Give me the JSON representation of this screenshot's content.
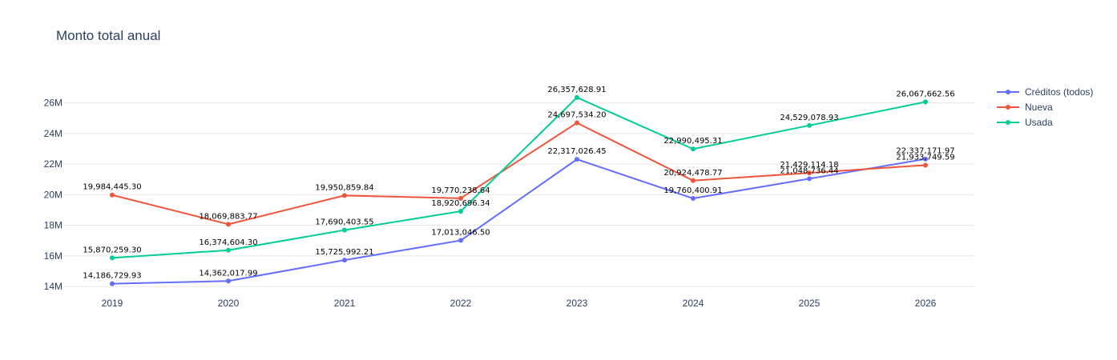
{
  "chart_data": {
    "type": "line",
    "title": "Monto total anual",
    "xlabel": "",
    "ylabel": "",
    "categories": [
      "2019",
      "2020",
      "2021",
      "2022",
      "2023",
      "2024",
      "2025",
      "2026"
    ],
    "y_ticks": [
      {
        "value": 14000000,
        "label": "14M"
      },
      {
        "value": 16000000,
        "label": "16M"
      },
      {
        "value": 18000000,
        "label": "18M"
      },
      {
        "value": 20000000,
        "label": "20M"
      },
      {
        "value": 22000000,
        "label": "22M"
      },
      {
        "value": 24000000,
        "label": "24M"
      },
      {
        "value": 26000000,
        "label": "26M"
      }
    ],
    "ylim": [
      13800000,
      27500000
    ],
    "grid": true,
    "legend_position": "top-right",
    "series": [
      {
        "name": "Créditos (todos)",
        "color": "#636efa",
        "values": [
          14186729.93,
          14362017.99,
          15725992.21,
          17013046.5,
          22317026.45,
          19760400.91,
          21048736.44,
          22337171.97
        ],
        "labels": [
          "14,186,729.93",
          "14,362,017.99",
          "15,725,992.21",
          "17,013,046.50",
          "22,317,026.45",
          "19,760,400.91",
          "21,048,736.44",
          "22,337,171.97"
        ]
      },
      {
        "name": "Nueva",
        "color": "#ef553b",
        "values": [
          19984445.3,
          18069883.77,
          19950859.84,
          19770238.64,
          24697534.2,
          20924478.77,
          21429114.18,
          21933749.59
        ],
        "labels": [
          "19,984,445.30",
          "18,069,883.77",
          "19,950,859.84",
          "19,770,238.64",
          "24,697,534.20",
          "20,924,478.77",
          "21,429,114.18",
          "21,933,749.59"
        ]
      },
      {
        "name": "Usada",
        "color": "#00cc96",
        "values": [
          15870259.3,
          16374604.3,
          17690403.55,
          18920696.34,
          26357628.91,
          22990495.31,
          24529078.93,
          26067662.56
        ],
        "labels": [
          "15,870,259.30",
          "16,374,604.30",
          "17,690,403.55",
          "18,920,696.34",
          "26,357,628.91",
          "22,990,495.31",
          "24,529,078.93",
          "26,067,662.56"
        ]
      }
    ]
  }
}
